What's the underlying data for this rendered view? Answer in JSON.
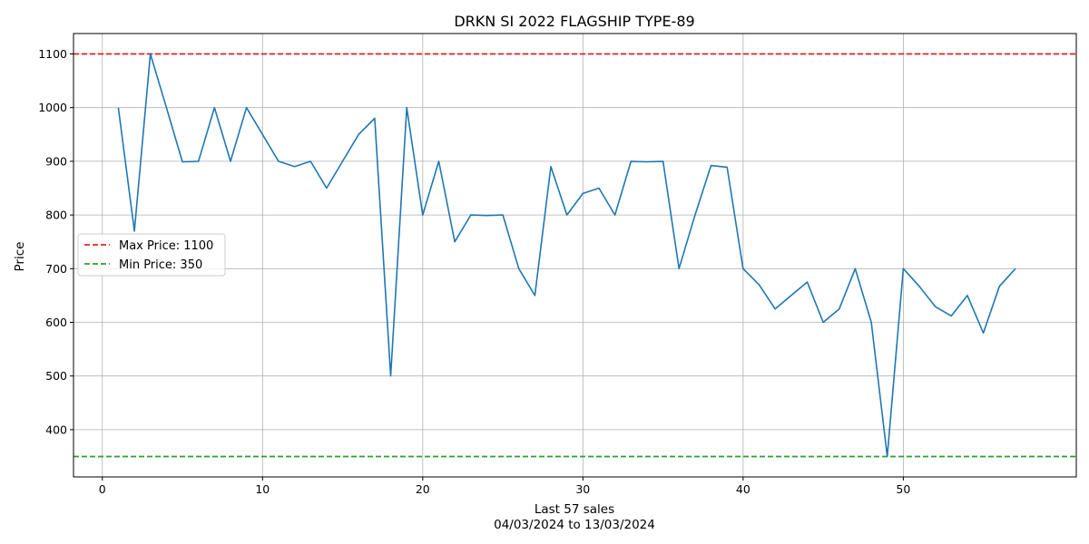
{
  "chart_data": {
    "type": "line",
    "title": "DRKN SI 2022 FLAGSHIP TYPE-89",
    "xlabel_line1": "Last 57 sales",
    "xlabel_line2": "04/03/2024 to 13/03/2024",
    "ylabel": "Price",
    "xlim": [
      -1.8,
      60.8
    ],
    "ylim": [
      312,
      1138
    ],
    "x_ticks": [
      0,
      10,
      20,
      30,
      40,
      50
    ],
    "y_ticks": [
      400,
      500,
      600,
      700,
      800,
      900,
      1000,
      1100
    ],
    "grid": true,
    "legend_placement": "center-left",
    "series": [
      {
        "color": "#1f77b4",
        "x": [
          1,
          2,
          3,
          4,
          5,
          6,
          7,
          8,
          9,
          10,
          11,
          12,
          13,
          14,
          15,
          16,
          17,
          18,
          19,
          20,
          21,
          22,
          23,
          24,
          25,
          26,
          27,
          28,
          29,
          30,
          31,
          32,
          33,
          34,
          35,
          36,
          37,
          38,
          39,
          40,
          41,
          42,
          43,
          44,
          45,
          46,
          47,
          48,
          49,
          50,
          51,
          52,
          53,
          54,
          55,
          56,
          57
        ],
        "y": [
          1000,
          770,
          1100,
          1000,
          899,
          900,
          1000,
          900,
          1000,
          950,
          900,
          890,
          900,
          850,
          900,
          950,
          980,
          500,
          1000,
          800,
          900,
          750,
          800,
          799,
          800,
          700,
          650,
          890,
          800,
          840,
          850,
          800,
          900,
          899,
          900,
          700,
          800,
          892,
          889,
          700,
          670,
          625,
          650,
          675,
          600,
          625,
          700,
          600,
          350,
          700,
          667,
          629,
          612,
          650,
          580,
          667,
          700
        ]
      }
    ],
    "reference_lines": [
      {
        "label": "Max Price: 1100",
        "value": 1100,
        "color": "#d62728"
      },
      {
        "label": "Min Price: 350",
        "value": 350,
        "color": "#2ca02c"
      }
    ]
  }
}
